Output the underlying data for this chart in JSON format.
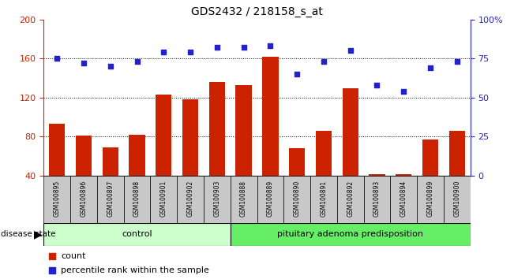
{
  "title": "GDS2432 / 218158_s_at",
  "samples": [
    "GSM100895",
    "GSM100896",
    "GSM100897",
    "GSM100898",
    "GSM100901",
    "GSM100902",
    "GSM100903",
    "GSM100888",
    "GSM100889",
    "GSM100890",
    "GSM100891",
    "GSM100892",
    "GSM100893",
    "GSM100894",
    "GSM100899",
    "GSM100900"
  ],
  "bar_values": [
    93,
    81,
    69,
    82,
    123,
    118,
    136,
    133,
    162,
    68,
    86,
    130,
    42,
    42,
    77,
    86
  ],
  "percentile_values": [
    75,
    72,
    70,
    73,
    79,
    79,
    82,
    82,
    83,
    65,
    73,
    80,
    58,
    54,
    69,
    73
  ],
  "bar_color": "#CC2200",
  "percentile_color": "#2222CC",
  "ylim_left": [
    40,
    200
  ],
  "ylim_right": [
    0,
    100
  ],
  "yticks_left": [
    40,
    80,
    120,
    160,
    200
  ],
  "yticks_right": [
    0,
    25,
    50,
    75,
    100
  ],
  "grid_values": [
    80,
    120,
    160
  ],
  "control_samples": 7,
  "control_label": "control",
  "disease_label": "pituitary adenoma predisposition",
  "disease_state_label": "disease state",
  "legend_count": "count",
  "legend_percentile": "percentile rank within the sample",
  "control_bg": "#ccffcc",
  "disease_bg": "#66ee66",
  "right_yaxis_color": "#2222CC",
  "left_yaxis_color": "#CC2200"
}
